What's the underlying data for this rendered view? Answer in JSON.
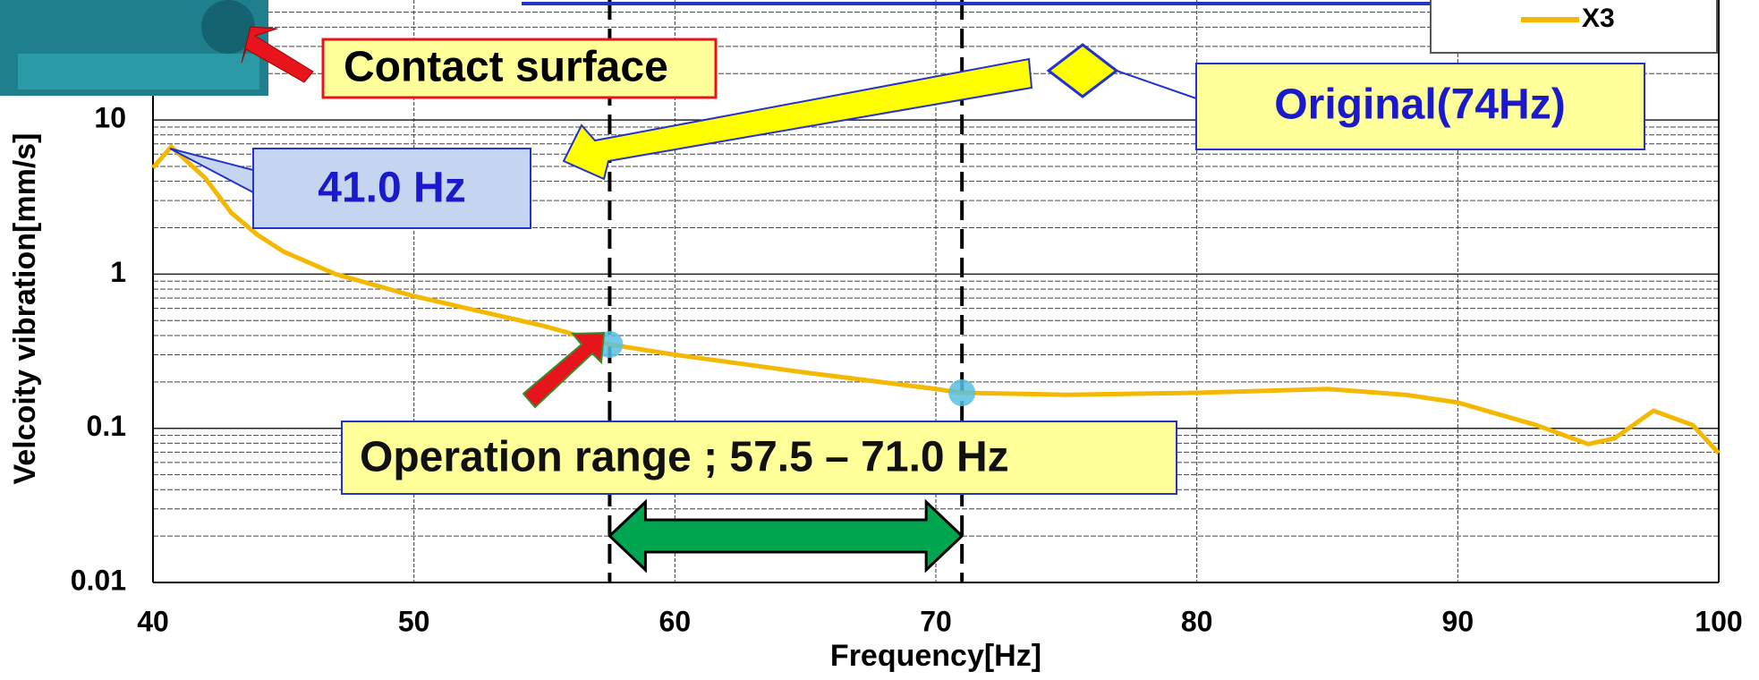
{
  "chart_data": {
    "type": "line",
    "x_label": "Frequency[Hz]",
    "y_label": "Velcoity vibration[mm/s]",
    "x": [
      40,
      40.7,
      42,
      43,
      44,
      45,
      47,
      50,
      55,
      57.5,
      60,
      65,
      70,
      71,
      75,
      80,
      85,
      88,
      90,
      93,
      95,
      96,
      97.5,
      99,
      100
    ],
    "series": [
      {
        "name": "X3",
        "color": "#f5b800",
        "values": [
          4.9,
          6.7,
          4.2,
          2.5,
          1.8,
          1.4,
          1.0,
          0.72,
          0.46,
          0.35,
          0.3,
          0.23,
          0.18,
          0.17,
          0.165,
          0.17,
          0.18,
          0.165,
          0.147,
          0.105,
          0.079,
          0.086,
          0.13,
          0.105,
          0.069
        ]
      }
    ],
    "xlim": [
      40,
      100
    ],
    "xticks": [
      40,
      50,
      60,
      70,
      80,
      90,
      100
    ],
    "ylim": [
      0.01,
      60
    ],
    "yticks": [
      0.01,
      0.1,
      1,
      10
    ],
    "y_log": true,
    "grid": true,
    "reference_lines_x": [
      57.5,
      71.0
    ],
    "highlight_points": {
      "x": [
        57.5,
        71.0
      ],
      "y": [
        0.35,
        0.17
      ]
    },
    "annotations": {
      "contact": "Contact surface",
      "peak": "41.0 Hz",
      "original": "Original(74Hz)",
      "range": "Operation range ; 57.5 – 71.0 Hz"
    }
  }
}
